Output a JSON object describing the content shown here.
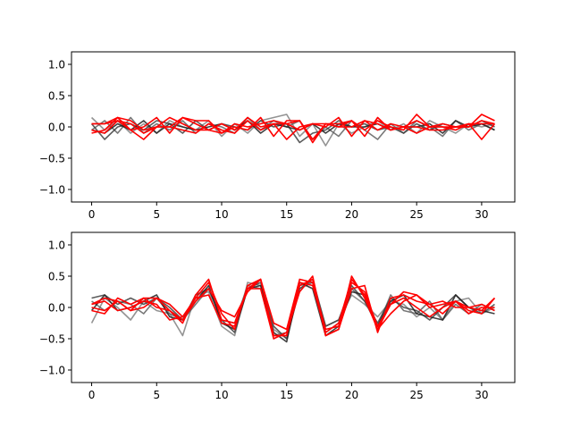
{
  "chart_data": [
    {
      "type": "line",
      "xlim": [
        -1.55,
        32.55
      ],
      "ylim": [
        -1.2,
        1.2
      ],
      "xticks": [
        0,
        5,
        10,
        15,
        20,
        25,
        30
      ],
      "yticks": [
        -1.0,
        -0.5,
        0.0,
        0.5,
        1.0
      ],
      "xtick_labels": [
        "0",
        "5",
        "10",
        "15",
        "20",
        "25",
        "30"
      ],
      "ytick_labels": [
        "−1.0",
        "−0.5",
        "0.0",
        "0.5",
        "1.0"
      ],
      "grid": false,
      "series": [
        {
          "color": "#808080",
          "values": [
            0.15,
            -0.05,
            0.1,
            -0.1,
            0.05,
            -0.1,
            0.1,
            0.0,
            -0.05,
            0.1,
            -0.15,
            0.05,
            -0.1,
            0.1,
            0.15,
            0.2,
            -0.15,
            0.05,
            -0.3,
            0.05,
            -0.1,
            0.0,
            0.1,
            -0.05,
            0.05,
            -0.1,
            0.1,
            0.0,
            -0.1,
            0.05,
            0.0,
            0.05
          ]
        },
        {
          "color": "#606060",
          "values": [
            -0.05,
            0.1,
            -0.1,
            0.15,
            -0.1,
            0.05,
            -0.05,
            0.1,
            -0.1,
            0.05,
            0.0,
            -0.1,
            0.15,
            -0.05,
            0.1,
            0.0,
            0.1,
            -0.2,
            0.0,
            -0.15,
            0.1,
            -0.05,
            -0.2,
            0.05,
            -0.1,
            0.1,
            0.0,
            -0.15,
            0.1,
            -0.05,
            0.05,
            -0.05
          ]
        },
        {
          "color": "#404040",
          "values": [
            0.05,
            -0.2,
            0.0,
            0.05,
            -0.05,
            0.1,
            0.05,
            -0.1,
            0.1,
            -0.05,
            0.05,
            0.0,
            -0.05,
            0.1,
            0.0,
            0.05,
            -0.25,
            -0.1,
            -0.05,
            0.1,
            0.0,
            0.05,
            -0.05,
            0.0,
            -0.1,
            0.05,
            -0.05,
            0.05,
            0.0,
            0.0,
            0.1,
            0.0
          ]
        },
        {
          "color": "#202020",
          "values": [
            -0.05,
            -0.1,
            0.05,
            -0.05,
            0.1,
            -0.1,
            0.05,
            0.0,
            -0.05,
            0.0,
            0.05,
            -0.05,
            0.1,
            -0.1,
            0.05,
            0.0,
            -0.05,
            0.05,
            -0.1,
            0.05,
            0.0,
            0.0,
            0.05,
            -0.05,
            0.0,
            0.0,
            0.05,
            -0.1,
            0.1,
            0.0,
            0.05,
            -0.05
          ]
        },
        {
          "color": "#FF0000",
          "values": [
            0.05,
            0.05,
            0.15,
            -0.05,
            -0.2,
            0.0,
            0.15,
            0.05,
            -0.05,
            -0.05,
            -0.1,
            0.05,
            0.0,
            0.05,
            0.1,
            0.05,
            0.1,
            -0.2,
            0.05,
            0.0,
            0.0,
            0.1,
            -0.05,
            0.05,
            0.0,
            0.0,
            -0.05,
            -0.05,
            0.0,
            0.0,
            0.2,
            0.1
          ]
        },
        {
          "color": "#FF0000",
          "values": [
            -0.05,
            -0.1,
            0.1,
            -0.05,
            0.0,
            0.15,
            -0.1,
            0.15,
            0.1,
            0.1,
            -0.1,
            0.0,
            -0.05,
            0.15,
            -0.15,
            0.1,
            0.1,
            -0.25,
            0.05,
            0.0,
            0.1,
            -0.15,
            0.15,
            -0.05,
            0.0,
            0.1,
            0.0,
            0.0,
            0.0,
            0.05,
            0.05,
            0.05
          ]
        },
        {
          "color": "#FF0000",
          "values": [
            0.05,
            0.05,
            0.1,
            0.05,
            -0.1,
            0.0,
            0.0,
            0.15,
            0.05,
            -0.05,
            0.05,
            -0.05,
            0.15,
            0.0,
            0.05,
            0.05,
            -0.05,
            0.05,
            0.05,
            0.05,
            0.1,
            -0.05,
            0.1,
            0.0,
            -0.05,
            0.2,
            0.0,
            0.0,
            -0.05,
            0.05,
            -0.2,
            0.05
          ]
        },
        {
          "color": "#FF0000",
          "values": [
            -0.1,
            -0.05,
            0.15,
            0.1,
            -0.05,
            0.0,
            0.0,
            -0.05,
            -0.1,
            0.05,
            -0.05,
            -0.1,
            0.1,
            -0.05,
            0.05,
            -0.2,
            0.0,
            0.05,
            0.0,
            0.15,
            -0.15,
            0.1,
            0.05,
            -0.05,
            0.0,
            -0.1,
            0.0,
            0.05,
            0.0,
            0.0,
            0.1,
            0.05
          ]
        }
      ]
    },
    {
      "type": "line",
      "xlim": [
        -1.55,
        32.55
      ],
      "ylim": [
        -1.2,
        1.2
      ],
      "xticks": [
        0,
        5,
        10,
        15,
        20,
        25,
        30
      ],
      "yticks": [
        -1.0,
        -0.5,
        0.0,
        0.5,
        1.0
      ],
      "xtick_labels": [
        "0",
        "5",
        "10",
        "15",
        "20",
        "25",
        "30"
      ],
      "ytick_labels": [
        "−1.0",
        "−0.5",
        "0.0",
        "0.5",
        "1.0"
      ],
      "grid": false,
      "series": [
        {
          "color": "#808080",
          "values": [
            -0.25,
            0.15,
            0.0,
            -0.2,
            0.1,
            -0.05,
            -0.1,
            -0.45,
            0.2,
            0.25,
            -0.3,
            -0.45,
            0.4,
            0.35,
            -0.35,
            -0.5,
            0.3,
            0.4,
            -0.3,
            -0.2,
            0.2,
            0.05,
            -0.15,
            0.1,
            0.05,
            -0.15,
            0.0,
            -0.2,
            0.1,
            0.15,
            -0.1,
            0.0
          ]
        },
        {
          "color": "#606060",
          "values": [
            0.1,
            -0.05,
            0.1,
            0.05,
            -0.1,
            0.15,
            -0.1,
            -0.2,
            0.05,
            0.3,
            -0.2,
            -0.25,
            0.35,
            0.3,
            -0.45,
            -0.4,
            0.35,
            0.4,
            -0.4,
            -0.25,
            0.3,
            0.1,
            -0.3,
            0.2,
            -0.05,
            -0.1,
            0.1,
            -0.2,
            0.05,
            -0.1,
            0.05,
            -0.05
          ]
        },
        {
          "color": "#404040",
          "values": [
            0.15,
            0.2,
            0.05,
            0.15,
            0.05,
            0.15,
            0.0,
            -0.2,
            0.2,
            0.3,
            -0.2,
            -0.4,
            0.3,
            0.4,
            -0.3,
            -0.5,
            0.3,
            0.45,
            -0.3,
            -0.2,
            0.35,
            0.1,
            -0.25,
            0.15,
            0.0,
            -0.05,
            -0.2,
            0.0,
            0.2,
            0.0,
            -0.1,
            0.05
          ]
        },
        {
          "color": "#202020",
          "values": [
            -0.05,
            0.2,
            -0.05,
            0.0,
            0.1,
            0.2,
            -0.15,
            -0.2,
            0.1,
            0.35,
            -0.25,
            -0.35,
            0.3,
            0.35,
            -0.4,
            -0.55,
            0.4,
            0.3,
            -0.45,
            -0.3,
            0.25,
            0.2,
            -0.3,
            0.1,
            0.2,
            -0.1,
            -0.15,
            -0.2,
            0.2,
            0.0,
            -0.05,
            -0.1
          ]
        },
        {
          "color": "#FF0000",
          "values": [
            0.05,
            0.15,
            0.1,
            -0.05,
            0.15,
            0.15,
            0.05,
            -0.15,
            0.15,
            0.4,
            -0.1,
            -0.35,
            0.35,
            0.45,
            -0.45,
            -0.45,
            0.35,
            0.45,
            -0.45,
            -0.35,
            0.5,
            0.15,
            -0.35,
            0.05,
            0.25,
            0.2,
            0.0,
            0.05,
            0.1,
            0.0,
            -0.05,
            0.15
          ]
        },
        {
          "color": "#FF0000",
          "values": [
            0.0,
            -0.05,
            0.1,
            -0.05,
            0.0,
            0.15,
            -0.05,
            -0.25,
            0.2,
            0.45,
            -0.2,
            -0.25,
            0.3,
            0.3,
            -0.5,
            -0.4,
            0.25,
            0.5,
            -0.45,
            -0.35,
            0.3,
            0.35,
            -0.4,
            0.15,
            0.2,
            0.1,
            0.05,
            -0.1,
            0.1,
            -0.05,
            -0.1,
            0.15
          ]
        },
        {
          "color": "#FF0000",
          "values": [
            -0.05,
            -0.1,
            0.15,
            0.05,
            0.15,
            0.0,
            -0.05,
            -0.2,
            0.1,
            0.3,
            -0.05,
            -0.15,
            0.25,
            0.45,
            -0.45,
            -0.45,
            0.4,
            0.35,
            -0.4,
            -0.25,
            0.45,
            0.2,
            -0.35,
            -0.1,
            0.1,
            0.2,
            0.05,
            0.1,
            0.0,
            0.0,
            0.05,
            -0.05
          ]
        },
        {
          "color": "#FF0000",
          "values": [
            0.05,
            0.1,
            -0.05,
            0.0,
            0.1,
            0.05,
            -0.2,
            -0.15,
            0.15,
            0.2,
            -0.25,
            -0.3,
            0.3,
            0.45,
            -0.25,
            -0.35,
            0.45,
            0.4,
            -0.35,
            -0.3,
            0.4,
            0.25,
            -0.3,
            0.05,
            0.15,
            0.0,
            -0.15,
            0.0,
            0.1,
            -0.1,
            0.0,
            0.0
          ]
        }
      ]
    }
  ]
}
